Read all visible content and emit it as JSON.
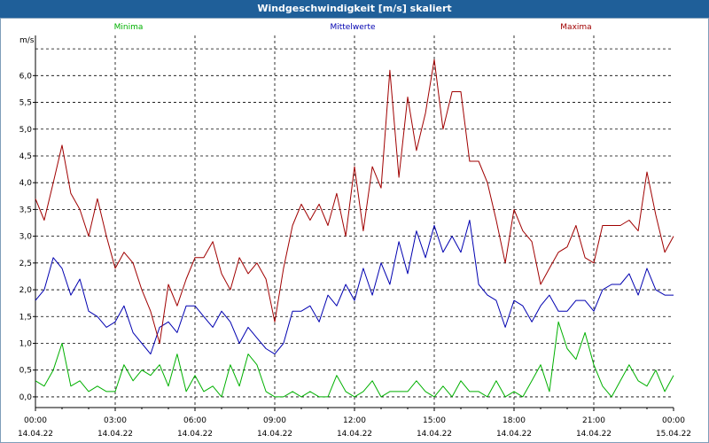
{
  "window": {
    "title": "Windgeschwindigkeit [m/s] skaliert"
  },
  "colors": {
    "titlebar": "#1f5f99",
    "min": "#00b000",
    "mean": "#0000b0",
    "max": "#a00000",
    "grid": "#000000"
  },
  "chart_data": {
    "type": "line",
    "title": "Windgeschwindigkeit [m/s] skaliert",
    "ylabel": "m/s",
    "xlabel": "",
    "ylim": [
      -0.2,
      6.75
    ],
    "xlim": [
      0,
      24
    ],
    "y_ticks": [
      "0,0",
      "0,5",
      "1,0",
      "1,5",
      "2,0",
      "2,5",
      "3,0",
      "3,5",
      "4,0",
      "4,5",
      "5,0",
      "5,5",
      "6,0"
    ],
    "y_tick_values": [
      0,
      0.5,
      1,
      1.5,
      2,
      2.5,
      3,
      3.5,
      4,
      4.5,
      5,
      5.5,
      6
    ],
    "x_ticks": [
      {
        "time": "00:00",
        "date": "14.04.22",
        "hour": 0
      },
      {
        "time": "03:00",
        "date": "14.04.22",
        "hour": 3
      },
      {
        "time": "06:00",
        "date": "14.04.22",
        "hour": 6
      },
      {
        "time": "09:00",
        "date": "14.04.22",
        "hour": 9
      },
      {
        "time": "12:00",
        "date": "14.04.22",
        "hour": 12
      },
      {
        "time": "15:00",
        "date": "14.04.22",
        "hour": 15
      },
      {
        "time": "18:00",
        "date": "14.04.22",
        "hour": 18
      },
      {
        "time": "21:00",
        "date": "14.04.22",
        "hour": 21
      },
      {
        "time": "00:00",
        "date": "15.04.22",
        "hour": 24
      }
    ],
    "grid": true,
    "legend_position": "top",
    "series": [
      {
        "name": "Minima",
        "color": "#00b000",
        "x": [
          0,
          0.33,
          0.67,
          1,
          1.33,
          1.67,
          2,
          2.33,
          2.67,
          3,
          3.33,
          3.67,
          4,
          4.33,
          4.67,
          5,
          5.33,
          5.67,
          6,
          6.33,
          6.67,
          7,
          7.33,
          7.67,
          8,
          8.33,
          8.67,
          9,
          9.33,
          9.67,
          10,
          10.33,
          10.67,
          11,
          11.33,
          11.67,
          12,
          12.33,
          12.67,
          13,
          13.33,
          13.67,
          14,
          14.33,
          14.67,
          15,
          15.33,
          15.67,
          16,
          16.33,
          16.67,
          17,
          17.33,
          17.67,
          18,
          18.33,
          18.67,
          19,
          19.33,
          19.67,
          20,
          20.33,
          20.67,
          21,
          21.33,
          21.67,
          22,
          22.33,
          22.67,
          23,
          23.33,
          23.67,
          24
        ],
        "values": [
          0.3,
          0.2,
          0.5,
          1.0,
          0.2,
          0.3,
          0.1,
          0.2,
          0.1,
          0.1,
          0.6,
          0.3,
          0.5,
          0.4,
          0.6,
          0.2,
          0.8,
          0.1,
          0.4,
          0.1,
          0.2,
          0.0,
          0.6,
          0.2,
          0.8,
          0.6,
          0.1,
          0.0,
          0.0,
          0.1,
          0.0,
          0.1,
          0.0,
          0.0,
          0.4,
          0.1,
          0.0,
          0.1,
          0.3,
          0.0,
          0.1,
          0.1,
          0.1,
          0.3,
          0.1,
          0.0,
          0.2,
          0.0,
          0.3,
          0.1,
          0.1,
          0.0,
          0.3,
          0.0,
          0.1,
          0.0,
          0.3,
          0.6,
          0.1,
          1.4,
          0.9,
          0.7,
          1.2,
          0.6,
          0.2,
          0.0,
          0.3,
          0.6,
          0.3,
          0.2,
          0.5,
          0.1,
          0.4
        ]
      },
      {
        "name": "Mittelwerte",
        "color": "#0000b0",
        "x": [
          0,
          0.33,
          0.67,
          1,
          1.33,
          1.67,
          2,
          2.33,
          2.67,
          3,
          3.33,
          3.67,
          4,
          4.33,
          4.67,
          5,
          5.33,
          5.67,
          6,
          6.33,
          6.67,
          7,
          7.33,
          7.67,
          8,
          8.33,
          8.67,
          9,
          9.33,
          9.67,
          10,
          10.33,
          10.67,
          11,
          11.33,
          11.67,
          12,
          12.33,
          12.67,
          13,
          13.33,
          13.67,
          14,
          14.33,
          14.67,
          15,
          15.33,
          15.67,
          16,
          16.33,
          16.67,
          17,
          17.33,
          17.67,
          18,
          18.33,
          18.67,
          19,
          19.33,
          19.67,
          20,
          20.33,
          20.67,
          21,
          21.33,
          21.67,
          22,
          22.33,
          22.67,
          23,
          23.33,
          23.67,
          24
        ],
        "values": [
          1.8,
          2.0,
          2.6,
          2.4,
          1.9,
          2.2,
          1.6,
          1.5,
          1.3,
          1.4,
          1.7,
          1.2,
          1.0,
          0.8,
          1.3,
          1.4,
          1.2,
          1.7,
          1.7,
          1.5,
          1.3,
          1.6,
          1.4,
          1.0,
          1.3,
          1.1,
          0.9,
          0.8,
          1.0,
          1.6,
          1.6,
          1.7,
          1.4,
          1.9,
          1.7,
          2.1,
          1.8,
          2.4,
          1.9,
          2.5,
          2.1,
          2.9,
          2.3,
          3.1,
          2.6,
          3.2,
          2.7,
          3.0,
          2.7,
          3.3,
          2.1,
          1.9,
          1.8,
          1.3,
          1.8,
          1.7,
          1.4,
          1.7,
          1.9,
          1.6,
          1.6,
          1.8,
          1.8,
          1.6,
          2.0,
          2.1,
          2.1,
          2.3,
          1.9,
          2.4,
          2.0,
          1.9,
          1.9
        ]
      },
      {
        "name": "Maxima",
        "color": "#a00000",
        "x": [
          0,
          0.33,
          0.67,
          1,
          1.33,
          1.67,
          2,
          2.33,
          2.67,
          3,
          3.33,
          3.67,
          4,
          4.33,
          4.67,
          5,
          5.33,
          5.67,
          6,
          6.33,
          6.67,
          7,
          7.33,
          7.67,
          8,
          8.33,
          8.67,
          9,
          9.33,
          9.67,
          10,
          10.33,
          10.67,
          11,
          11.33,
          11.67,
          12,
          12.33,
          12.67,
          13,
          13.33,
          13.67,
          14,
          14.33,
          14.67,
          15,
          15.33,
          15.67,
          16,
          16.33,
          16.67,
          17,
          17.33,
          17.67,
          18,
          18.33,
          18.67,
          19,
          19.33,
          19.67,
          20,
          20.33,
          20.67,
          21,
          21.33,
          21.67,
          22,
          22.33,
          22.67,
          23,
          23.33,
          23.67,
          24
        ],
        "values": [
          3.7,
          3.3,
          4.0,
          4.7,
          3.8,
          3.5,
          3.0,
          3.7,
          3.0,
          2.4,
          2.7,
          2.5,
          2.0,
          1.6,
          1.0,
          2.1,
          1.7,
          2.2,
          2.6,
          2.6,
          2.9,
          2.3,
          2.0,
          2.6,
          2.3,
          2.5,
          2.2,
          1.4,
          2.4,
          3.2,
          3.6,
          3.3,
          3.6,
          3.2,
          3.8,
          3.0,
          4.3,
          3.1,
          4.3,
          3.9,
          6.1,
          4.1,
          5.6,
          4.6,
          5.3,
          6.3,
          5.0,
          5.7,
          5.7,
          4.4,
          4.4,
          4.0,
          3.3,
          2.5,
          3.5,
          3.1,
          2.9,
          2.1,
          2.4,
          2.7,
          2.8,
          3.2,
          2.6,
          2.5,
          3.2,
          3.2,
          3.2,
          3.3,
          3.1,
          4.2,
          3.4,
          2.7,
          3.0
        ]
      }
    ]
  }
}
